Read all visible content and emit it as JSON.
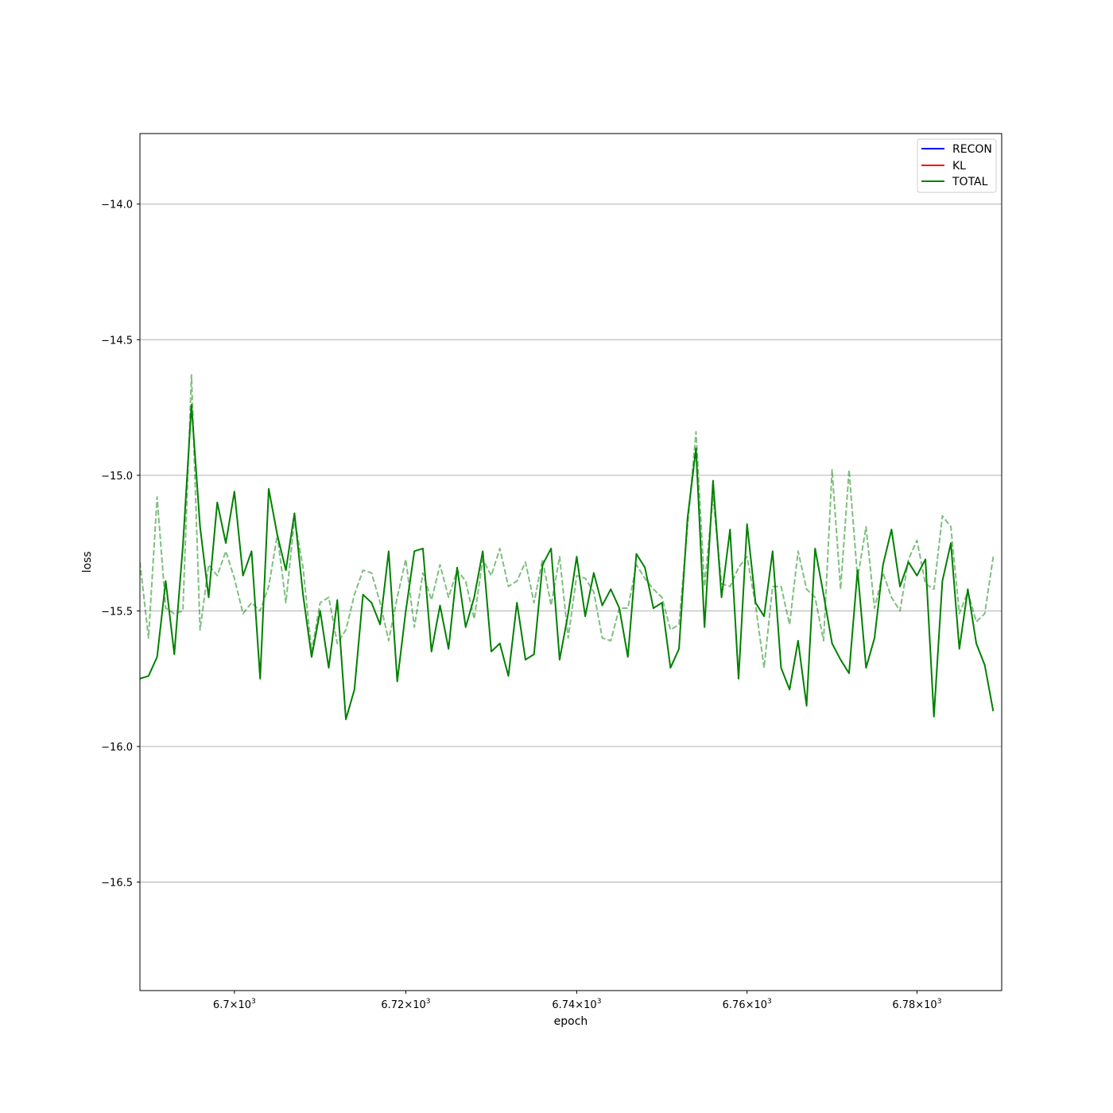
{
  "chart_data": {
    "type": "line",
    "xlabel": "epoch",
    "ylabel": "loss",
    "xlim": [
      6689,
      6790
    ],
    "ylim": [
      -16.9,
      -13.74
    ],
    "x_scale": "log",
    "grid": "y",
    "legend": {
      "placement": "top-right",
      "entries": [
        "RECON",
        "KL",
        "TOTAL"
      ]
    },
    "colors": {
      "RECON": "#0000ff",
      "KL": "#ff0000",
      "TOTAL": "#008000"
    },
    "x_ticks": [
      {
        "value": 6700,
        "label": "6.7×10",
        "exp": "3"
      },
      {
        "value": 6720,
        "label": "6.72×10",
        "exp": "3"
      },
      {
        "value": 6740,
        "label": "6.74×10",
        "exp": "3"
      },
      {
        "value": 6760,
        "label": "6.76×10",
        "exp": "3"
      },
      {
        "value": 6780,
        "label": "6.78×10",
        "exp": "3"
      }
    ],
    "y_ticks": [
      {
        "value": -14.0,
        "label": "−14.0"
      },
      {
        "value": -14.5,
        "label": "−14.5"
      },
      {
        "value": -15.0,
        "label": "−15.0"
      },
      {
        "value": -15.5,
        "label": "−15.5"
      },
      {
        "value": -16.0,
        "label": "−16.0"
      },
      {
        "value": -16.5,
        "label": "−16.5"
      }
    ],
    "x_start": 6689,
    "series": [
      {
        "name": "TOTAL",
        "style": "solid",
        "values": [
          -15.75,
          -15.74,
          -15.67,
          -15.39,
          -15.66,
          -15.26,
          -14.74,
          -15.19,
          -15.45,
          -15.1,
          -15.25,
          -15.06,
          -15.37,
          -15.28,
          -15.75,
          -15.05,
          -15.22,
          -15.35,
          -15.14,
          -15.44,
          -15.67,
          -15.5,
          -15.71,
          -15.46,
          -15.9,
          -15.79,
          -15.44,
          -15.47,
          -15.55,
          -15.28,
          -15.76,
          -15.5,
          -15.28,
          -15.27,
          -15.65,
          -15.48,
          -15.64,
          -15.34,
          -15.56,
          -15.45,
          -15.28,
          -15.65,
          -15.62,
          -15.74,
          -15.47,
          -15.68,
          -15.66,
          -15.33,
          -15.27,
          -15.68,
          -15.51,
          -15.3,
          -15.52,
          -15.36,
          -15.48,
          -15.42,
          -15.49,
          -15.67,
          -15.29,
          -15.34,
          -15.49,
          -15.47,
          -15.71,
          -15.64,
          -15.16,
          -14.9,
          -15.56,
          -15.02,
          -15.45,
          -15.2,
          -15.75,
          -15.18,
          -15.47,
          -15.52,
          -15.28,
          -15.71,
          -15.79,
          -15.61,
          -15.85,
          -15.27,
          -15.44,
          -15.62,
          -15.68,
          -15.73,
          -15.35,
          -15.71,
          -15.6,
          -15.33,
          -15.2,
          -15.41,
          -15.32,
          -15.37,
          -15.31,
          -15.89,
          -15.39,
          -15.25,
          -15.64,
          -15.42,
          -15.62,
          -15.7,
          -15.87
        ]
      },
      {
        "name": "",
        "style": "dashed",
        "values": [
          -15.32,
          -15.6,
          -15.08,
          -15.49,
          -15.51,
          -15.5,
          -14.63,
          -15.57,
          -15.33,
          -15.37,
          -15.28,
          -15.38,
          -15.51,
          -15.47,
          -15.5,
          -15.41,
          -15.22,
          -15.47,
          -15.16,
          -15.34,
          -15.65,
          -15.47,
          -15.45,
          -15.62,
          -15.57,
          -15.44,
          -15.35,
          -15.36,
          -15.47,
          -15.61,
          -15.45,
          -15.31,
          -15.56,
          -15.36,
          -15.46,
          -15.33,
          -15.45,
          -15.35,
          -15.39,
          -15.53,
          -15.31,
          -15.37,
          -15.27,
          -15.41,
          -15.39,
          -15.32,
          -15.47,
          -15.31,
          -15.48,
          -15.3,
          -15.6,
          -15.37,
          -15.38,
          -15.43,
          -15.6,
          -15.61,
          -15.49,
          -15.49,
          -15.33,
          -15.38,
          -15.42,
          -15.45,
          -15.57,
          -15.55,
          -15.19,
          -14.84,
          -15.41,
          -15.08,
          -15.4,
          -15.41,
          -15.34,
          -15.3,
          -15.48,
          -15.71,
          -15.41,
          -15.41,
          -15.55,
          -15.28,
          -15.42,
          -15.45,
          -15.61,
          -14.98,
          -15.42,
          -14.98,
          -15.38,
          -15.19,
          -15.49,
          -15.36,
          -15.45,
          -15.5,
          -15.31,
          -15.24,
          -15.4,
          -15.42,
          -15.15,
          -15.19,
          -15.51,
          -15.43,
          -15.54,
          -15.51,
          -15.3
        ]
      }
    ]
  }
}
